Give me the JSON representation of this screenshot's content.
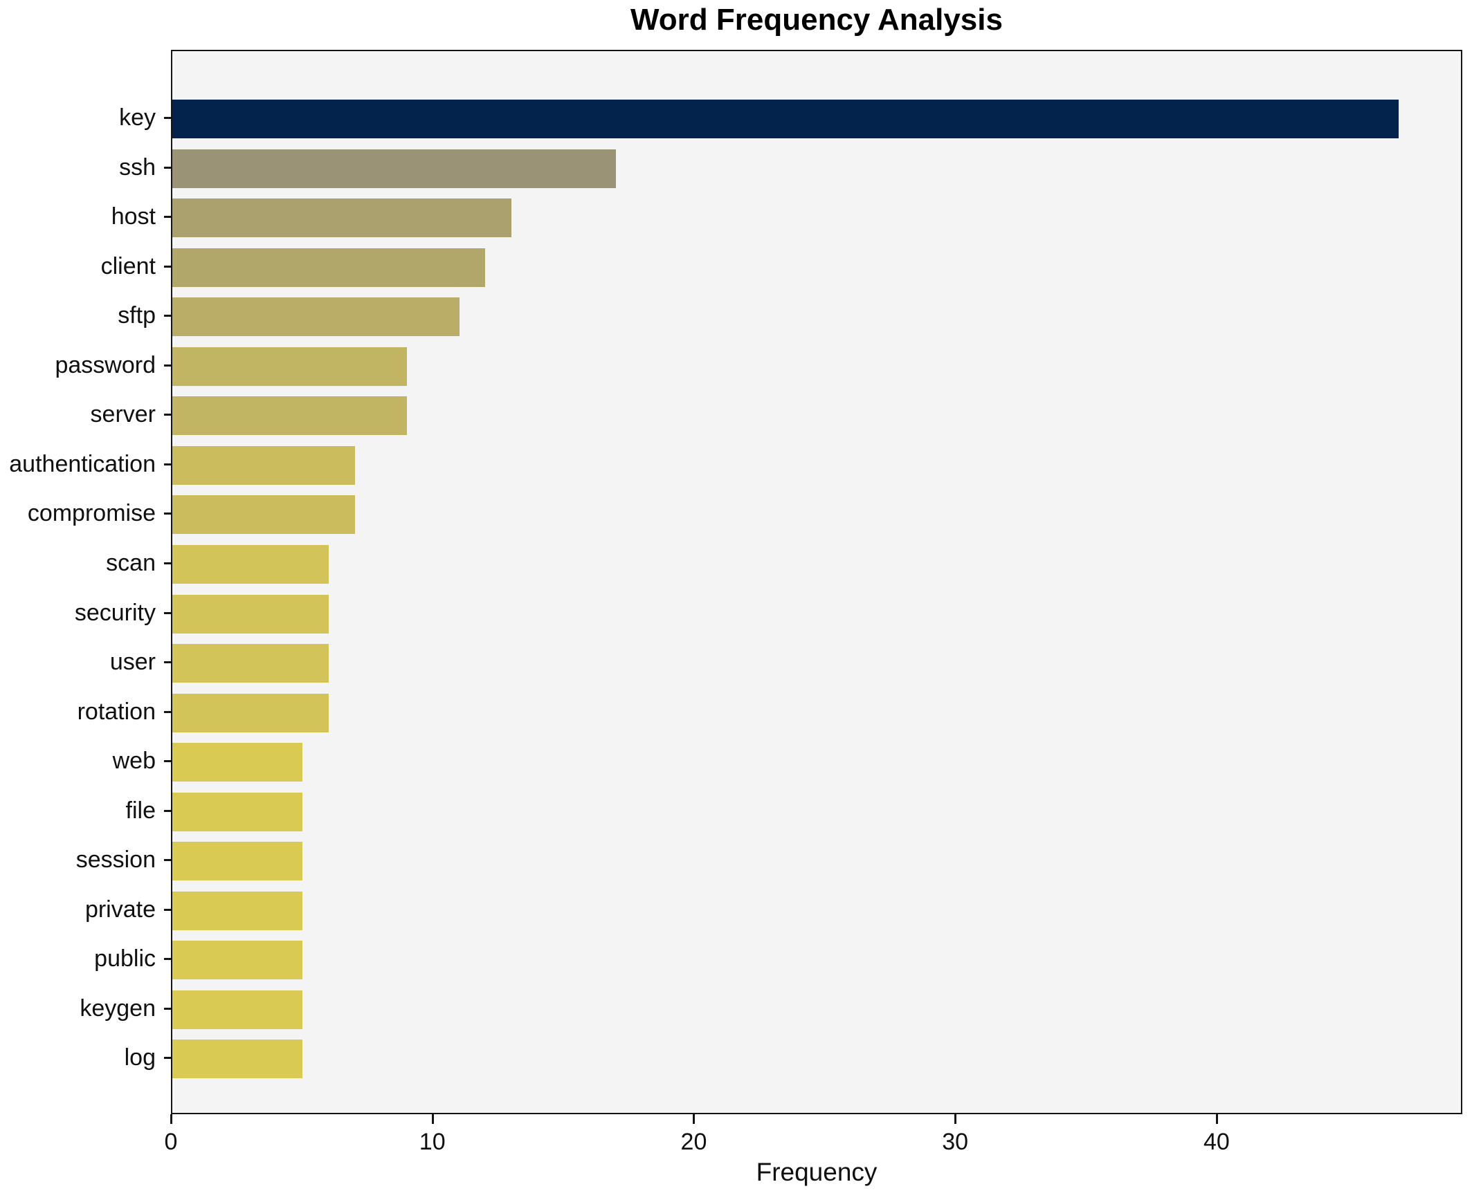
{
  "chart_data": {
    "type": "bar",
    "orientation": "horizontal",
    "title": "Word Frequency Analysis",
    "xlabel": "Frequency",
    "ylabel": "",
    "categories": [
      "key",
      "ssh",
      "host",
      "client",
      "sftp",
      "password",
      "server",
      "authentication",
      "compromise",
      "scan",
      "security",
      "user",
      "rotation",
      "web",
      "file",
      "session",
      "private",
      "public",
      "keygen",
      "log"
    ],
    "values": [
      47,
      17,
      13,
      12,
      11,
      9,
      9,
      7,
      7,
      6,
      6,
      6,
      6,
      5,
      5,
      5,
      5,
      5,
      5,
      5
    ],
    "bar_colors": [
      "#03234d",
      "#9a9376",
      "#aba16e",
      "#b2a76b",
      "#b9ad67",
      "#c1b463",
      "#c1b463",
      "#cbbd5d",
      "#cbbd5d",
      "#d2c459",
      "#d2c459",
      "#d2c459",
      "#d2c459",
      "#d8ca53",
      "#d8ca53",
      "#d8ca53",
      "#d8ca53",
      "#d8ca53",
      "#d8ca53",
      "#d8ca53"
    ],
    "xlim": [
      0,
      49.4
    ],
    "xticks": [
      0,
      10,
      20,
      30,
      40
    ],
    "grid": false,
    "legend": null,
    "plot_background": "#f5f4f5",
    "figure_background": "#ffffff",
    "spine_color": "#141414"
  }
}
